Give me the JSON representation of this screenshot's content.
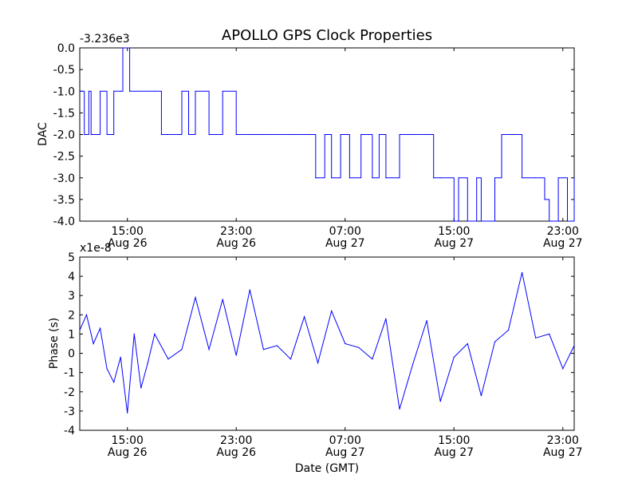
{
  "title": "APOLLO GPS Clock Properties",
  "line_color": "#0000ff",
  "chart_data": [
    {
      "type": "line",
      "ylabel": "DAC",
      "offset_label": "-3.236e3",
      "ylim": [
        -4.0,
        0.0
      ],
      "yticks": [
        "0.0",
        "-0.5",
        "-1.0",
        "-1.5",
        "-2.0",
        "-2.5",
        "-3.0",
        "-3.5",
        "-4.0"
      ],
      "xticks": [
        {
          "time": "15:00",
          "date": "Aug 26"
        },
        {
          "time": "23:00",
          "date": "Aug 26"
        },
        {
          "time": "07:00",
          "date": "Aug 27"
        },
        {
          "time": "15:00",
          "date": "Aug 27"
        },
        {
          "time": "23:00",
          "date": "Aug 27"
        }
      ],
      "x_range": [
        "Aug 26 11:30",
        "Aug 27 23:50"
      ],
      "series": [
        {
          "x": [
            "Aug 26 11:30",
            "Aug 26 11:50",
            "Aug 26 12:10",
            "Aug 26 12:20",
            "Aug 26 13:00",
            "Aug 26 13:30",
            "Aug 26 14:00",
            "Aug 26 14:30",
            "Aug 26 14:40",
            "Aug 26 15:10",
            "Aug 26 17:00",
            "Aug 26 17:30",
            "Aug 26 19:00",
            "Aug 26 19:30",
            "Aug 26 20:00",
            "Aug 26 21:00",
            "Aug 26 22:00",
            "Aug 26 23:00",
            "Aug 27 00:00",
            "Aug 27 01:00",
            "Aug 27 03:00",
            "Aug 27 04:00",
            "Aug 27 04:50",
            "Aug 27 05:30",
            "Aug 27 06:00",
            "Aug 27 06:40",
            "Aug 27 07:20",
            "Aug 27 08:10",
            "Aug 27 09:00",
            "Aug 27 09:30",
            "Aug 27 10:00",
            "Aug 27 11:00",
            "Aug 27 12:00",
            "Aug 27 13:00",
            "Aug 27 13:30",
            "Aug 27 14:00",
            "Aug 27 15:00",
            "Aug 27 15:20",
            "Aug 27 16:00",
            "Aug 27 16:40",
            "Aug 27 17:00",
            "Aug 27 18:00",
            "Aug 27 18:30",
            "Aug 27 20:00",
            "Aug 27 21:00",
            "Aug 27 21:40",
            "Aug 27 22:00",
            "Aug 27 22:40",
            "Aug 27 23:20",
            "Aug 27 23:50"
          ],
          "y": [
            -1.0,
            -2.0,
            -1.0,
            -2.0,
            -1.0,
            -2.0,
            -1.0,
            -1.0,
            0.0,
            -1.0,
            -1.0,
            -2.0,
            -1.0,
            -2.0,
            -1.0,
            -2.0,
            -1.0,
            -2.0,
            -2.0,
            -2.0,
            -2.0,
            -2.0,
            -3.0,
            -2.0,
            -3.0,
            -2.0,
            -3.0,
            -2.0,
            -3.0,
            -2.0,
            -3.0,
            -2.0,
            -2.0,
            -2.0,
            -3.0,
            -3.0,
            -4.0,
            -3.0,
            -4.0,
            -3.0,
            -4.0,
            -3.0,
            -2.0,
            -3.0,
            -3.0,
            -3.5,
            -4.0,
            -3.0,
            -4.0,
            -3.0
          ]
        }
      ]
    },
    {
      "type": "line",
      "ylabel": "Phase (s)",
      "xlabel": "Date (GMT)",
      "offset_label": "x1e-8",
      "ylim": [
        -4,
        5
      ],
      "yticks": [
        "5",
        "4",
        "3",
        "2",
        "1",
        "0",
        "-1",
        "-2",
        "-3",
        "-4"
      ],
      "xticks": [
        {
          "time": "15:00",
          "date": "Aug 26"
        },
        {
          "time": "23:00",
          "date": "Aug 26"
        },
        {
          "time": "07:00",
          "date": "Aug 27"
        },
        {
          "time": "15:00",
          "date": "Aug 27"
        },
        {
          "time": "23:00",
          "date": "Aug 27"
        }
      ],
      "x_range": [
        "Aug 26 11:30",
        "Aug 27 23:50"
      ],
      "series": [
        {
          "x": [
            "Aug 26 11:30",
            "Aug 26 12:00",
            "Aug 26 12:30",
            "Aug 26 13:00",
            "Aug 26 13:30",
            "Aug 26 14:00",
            "Aug 26 14:30",
            "Aug 26 15:00",
            "Aug 26 15:30",
            "Aug 26 16:00",
            "Aug 26 16:30",
            "Aug 26 17:00",
            "Aug 26 18:00",
            "Aug 26 19:00",
            "Aug 26 20:00",
            "Aug 26 21:00",
            "Aug 26 22:00",
            "Aug 26 23:00",
            "Aug 27 00:00",
            "Aug 27 01:00",
            "Aug 27 02:00",
            "Aug 27 03:00",
            "Aug 27 04:00",
            "Aug 27 05:00",
            "Aug 27 06:00",
            "Aug 27 07:00",
            "Aug 27 08:00",
            "Aug 27 09:00",
            "Aug 27 10:00",
            "Aug 27 11:00",
            "Aug 27 12:00",
            "Aug 27 13:00",
            "Aug 27 14:00",
            "Aug 27 15:00",
            "Aug 27 16:00",
            "Aug 27 17:00",
            "Aug 27 18:00",
            "Aug 27 19:00",
            "Aug 27 20:00",
            "Aug 27 21:00",
            "Aug 27 22:00",
            "Aug 27 23:00",
            "Aug 27 23:50"
          ],
          "y": [
            1.2,
            2.0,
            0.5,
            1.3,
            -0.8,
            -1.5,
            -0.2,
            -3.1,
            1.0,
            -1.8,
            -0.5,
            1.0,
            -0.3,
            0.2,
            2.9,
            0.2,
            2.8,
            -0.1,
            3.3,
            0.2,
            0.4,
            -0.3,
            1.9,
            -0.5,
            2.2,
            0.5,
            0.3,
            -0.3,
            1.8,
            -2.9,
            -0.5,
            1.7,
            -2.5,
            -0.2,
            0.5,
            -2.2,
            0.6,
            1.2,
            4.2,
            0.8,
            1.0,
            -0.8,
            0.4
          ]
        }
      ]
    }
  ]
}
